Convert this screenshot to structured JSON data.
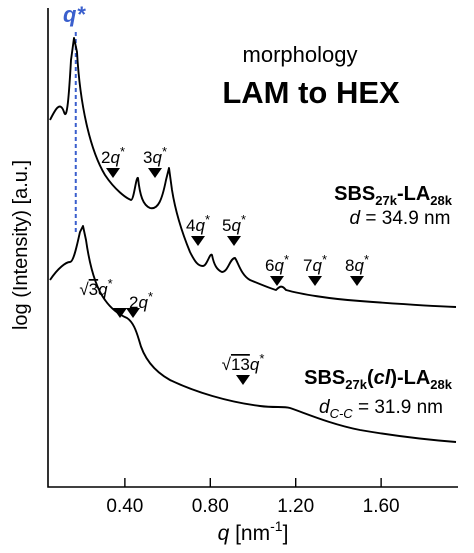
{
  "chart_data": {
    "type": "line",
    "xlabel": {
      "symbol": "q",
      "unit_open": " [nm",
      "unit_exp": "-1",
      "unit_close": "]"
    },
    "ylabel": "log (Intensity) [a.u.]",
    "xlim": [
      0.04,
      1.96
    ],
    "x_ticks": [
      {
        "value": 0.4,
        "label": "0.40"
      },
      {
        "value": 0.8,
        "label": "0.80"
      },
      {
        "value": 1.2,
        "label": "1.20"
      },
      {
        "value": 1.6,
        "label": "1.60"
      }
    ],
    "header": {
      "line1": "morphology",
      "line2": "LAM to HEX"
    },
    "qstar_marker": {
      "label": "q*",
      "x": 0.17,
      "color": "#3a5fcd"
    },
    "series": [
      {
        "name_main": "SBS",
        "name_sub1": "27k",
        "name_mid": "-LA",
        "name_sub2": "28k",
        "param_symbol": "d",
        "param_sub": "",
        "param_value": " =  34.9 nm",
        "peaks": [
          {
            "base": "2q",
            "sup": "*",
            "sqrt": "",
            "x": 0.36
          },
          {
            "base": "3q",
            "sup": "*",
            "sqrt": "",
            "x": 0.54
          },
          {
            "base": "4q",
            "sup": "*",
            "sqrt": "",
            "x": 0.73
          },
          {
            "base": "5q",
            "sup": "*",
            "sqrt": "",
            "x": 0.91
          },
          {
            "base": "6q",
            "sup": "*",
            "sqrt": "",
            "x": 1.11
          },
          {
            "base": "7q",
            "sup": "*",
            "sqrt": "",
            "x": 1.29
          },
          {
            "base": "8q",
            "sup": "*",
            "sqrt": "",
            "x": 1.48
          }
        ]
      },
      {
        "name_main": "SBS",
        "name_sub1": "27k",
        "name_mid_open": "(",
        "name_cl": "cl",
        "name_mid_close": ")-LA",
        "name_sub2": "28k",
        "param_symbol": "d",
        "param_sub": "C-C",
        "param_value": " =  31.9 nm",
        "peaks": [
          {
            "base": "3q",
            "sup": "*",
            "sqrt": "√",
            "x": 0.37
          },
          {
            "base": "2q",
            "sup": "*",
            "sqrt": "",
            "x": 0.44
          },
          {
            "base": "13q",
            "sup": "*",
            "sqrt": "√",
            "x": 0.81
          }
        ]
      }
    ]
  }
}
